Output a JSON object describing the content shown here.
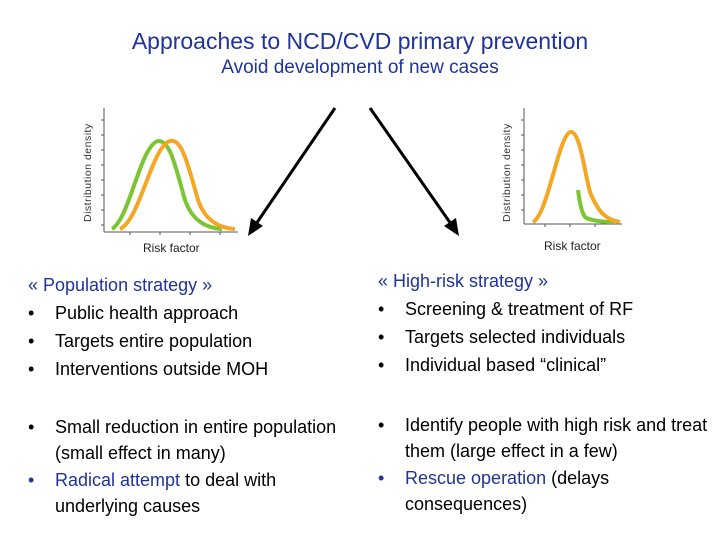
{
  "title": "Approaches to NCD/CVD primary prevention",
  "subtitle": "Avoid development of new cases",
  "left_chart": {
    "ylabel": "Distribution density",
    "xlabel": "Risk factor",
    "colors": {
      "orange": "#f5a623",
      "green": "#7ac531"
    }
  },
  "right_chart": {
    "ylabel": "Distribution density",
    "xlabel": "Risk factor"
  },
  "left": {
    "heading": "« Population strategy »",
    "items": [
      "Public health approach",
      "Targets entire population",
      "Interventions outside MOH"
    ],
    "b1_text": "Small reduction in entire population (small effect in many)",
    "b2_highlight": "Radical attempt",
    "b2_rest": " to deal with underlying causes"
  },
  "right": {
    "heading": "« High-risk strategy »",
    "items": [
      "Screening & treatment of RF",
      "Targets selected individuals",
      "Individual based “clinical”"
    ],
    "b1_text": "Identify people with high risk and treat them (large effect in a few)",
    "b2_highlight": "Rescue operation",
    "b2_rest": " (delays consequences)"
  },
  "bullet": "•"
}
